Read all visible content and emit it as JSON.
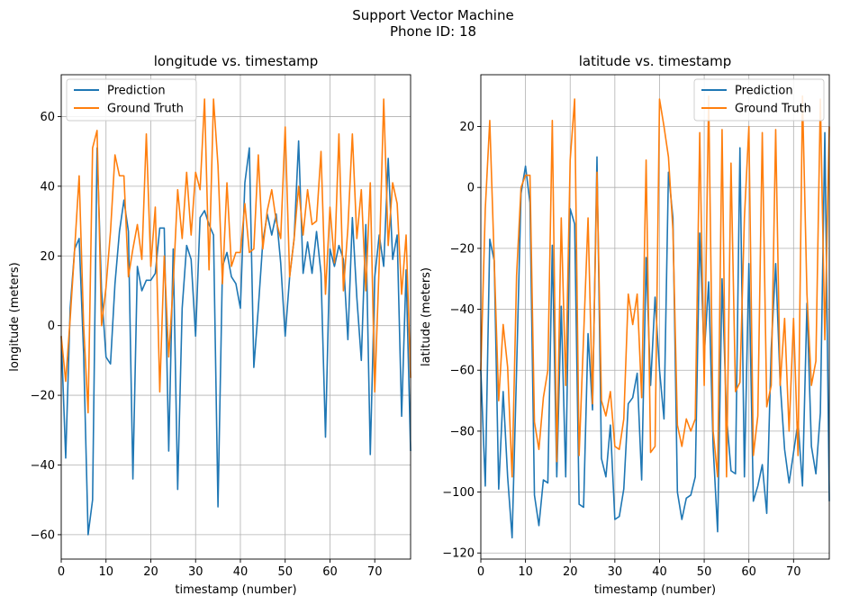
{
  "suptitle_line1": "Support Vector Machine",
  "suptitle_line2": "Phone ID: 18",
  "colors": {
    "prediction": "#1f77b4",
    "ground_truth": "#ff7f0e",
    "grid": "#b0b0b0"
  },
  "chart_data": [
    {
      "type": "line",
      "title": "longitude vs. timestamp",
      "xlabel": "timestamp (number)",
      "ylabel": "longitude (meters)",
      "xlim": [
        0,
        78
      ],
      "ylim": [
        -67,
        72
      ],
      "xticks": [
        0,
        10,
        20,
        30,
        40,
        50,
        60,
        70
      ],
      "yticks": [
        -60,
        -40,
        -20,
        0,
        20,
        40,
        60
      ],
      "legend_position": "upper-left",
      "series": [
        {
          "name": "Prediction",
          "values": [
            -3,
            -38,
            5,
            22,
            25,
            -8,
            -60,
            -50,
            51,
            10,
            -9,
            -11,
            12,
            27,
            36,
            27,
            -44,
            17,
            10,
            13,
            13,
            15,
            28,
            28,
            -36,
            22,
            -47,
            5,
            23,
            19,
            -3,
            31,
            33,
            29,
            26,
            -52,
            17,
            21,
            14,
            12,
            5,
            41,
            51,
            -12,
            5,
            24,
            32,
            26,
            32,
            18,
            -3,
            14,
            25,
            53,
            15,
            24,
            15,
            27,
            15,
            -32,
            22,
            17,
            23,
            19,
            -4,
            31,
            8,
            -10,
            29,
            -37,
            14,
            26,
            17,
            48,
            19,
            26,
            -26,
            16,
            -36
          ]
        },
        {
          "name": "Ground Truth",
          "values": [
            -3,
            -16,
            2,
            22,
            43,
            0,
            -25,
            51,
            56,
            0,
            11,
            27,
            49,
            43,
            43,
            14,
            22,
            29,
            19,
            55,
            17,
            34,
            -19,
            20,
            -9,
            12,
            39,
            25,
            44,
            26,
            44,
            39,
            65,
            16,
            65,
            46,
            12,
            41,
            17,
            21,
            21,
            35,
            21,
            22,
            49,
            22,
            33,
            39,
            30,
            25,
            57,
            14,
            25,
            40,
            26,
            39,
            29,
            30,
            50,
            9,
            34,
            18,
            55,
            10,
            28,
            55,
            25,
            39,
            10,
            41,
            -19,
            18,
            65,
            23,
            41,
            35,
            9,
            26,
            -15
          ]
        }
      ]
    },
    {
      "type": "line",
      "title": "latitude vs. timestamp",
      "xlabel": "timestamp (number)",
      "ylabel": "latitude (meters)",
      "xlim": [
        0,
        78
      ],
      "ylim": [
        -122,
        37
      ],
      "xticks": [
        0,
        10,
        20,
        30,
        40,
        50,
        60,
        70
      ],
      "yticks": [
        -120,
        -100,
        -80,
        -60,
        -40,
        -20,
        0,
        20
      ],
      "legend_position": "upper-right",
      "series": [
        {
          "name": "Prediction",
          "values": [
            -60,
            -98,
            -17,
            -24,
            -99,
            -67,
            -95,
            -115,
            -60,
            -2,
            7,
            -5,
            -101,
            -111,
            -96,
            -97,
            -19,
            -95,
            -39,
            -95,
            -7,
            -12,
            -104,
            -105,
            -48,
            -73,
            10,
            -89,
            -95,
            -78,
            -109,
            -108,
            -99,
            -71,
            -69,
            -61,
            -96,
            -23,
            -65,
            -36,
            -60,
            -76,
            5,
            -10,
            -100,
            -109,
            -102,
            -101,
            -95,
            -15,
            -55,
            -31,
            -85,
            -113,
            -30,
            -75,
            -93,
            -94,
            13,
            -95,
            -25,
            -103,
            -98,
            -91,
            -107,
            -53,
            -25,
            -64,
            -86,
            -97,
            -87,
            -77,
            -98,
            -38,
            -85,
            -94,
            -74,
            18,
            -103
          ]
        },
        {
          "name": "Ground Truth",
          "values": [
            -60,
            -7,
            22,
            -24,
            -70,
            -45,
            -59,
            -95,
            -29,
            0,
            4,
            4,
            -77,
            -86,
            -69,
            -60,
            22,
            -90,
            -10,
            -65,
            9,
            29,
            -88,
            -49,
            -10,
            -71,
            5,
            -70,
            -75,
            -67,
            -85,
            -86,
            -76,
            -35,
            -45,
            -35,
            -69,
            9,
            -87,
            -85,
            29,
            20,
            10,
            -14,
            -78,
            -85,
            -76,
            -80,
            -76,
            18,
            -65,
            30,
            -80,
            -95,
            19,
            -95,
            8,
            -67,
            -64,
            -10,
            20,
            -88,
            -75,
            18,
            -72,
            -65,
            19,
            -65,
            -43,
            -80,
            -43,
            -88,
            30,
            -35,
            -65,
            -57,
            29,
            -50,
            20
          ]
        }
      ]
    }
  ]
}
